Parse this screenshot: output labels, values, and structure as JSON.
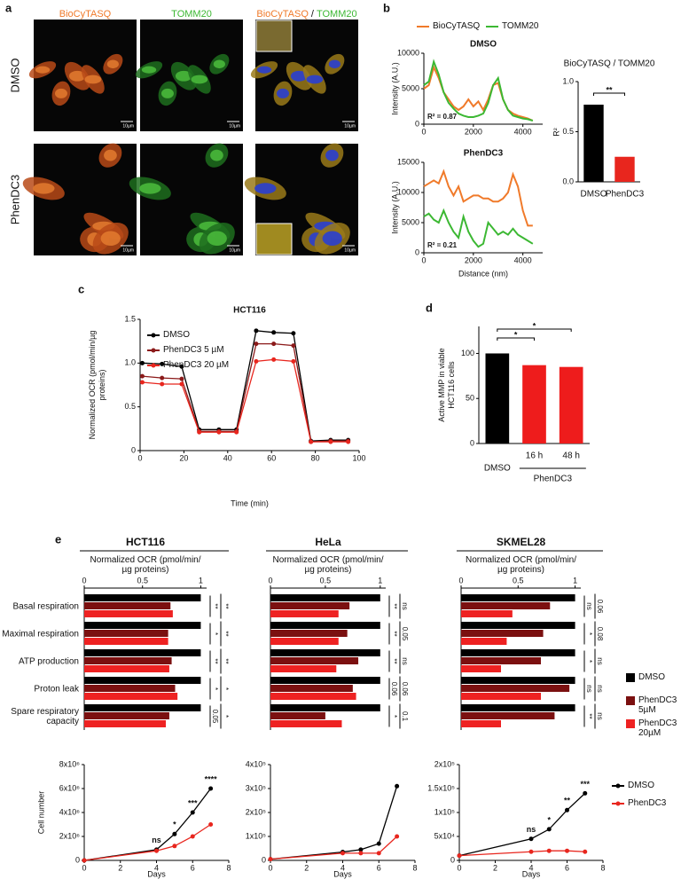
{
  "panel_labels": [
    "a",
    "b",
    "c",
    "d",
    "e"
  ],
  "panel_a": {
    "columns": [
      "BioCyTASQ",
      "TOMM20"
    ],
    "merge_separator": "/",
    "rows": [
      "DMSO",
      "PhenDC3"
    ],
    "scale_bar": "10µm",
    "column_colors": [
      "#f07a2a",
      "#3cb833"
    ]
  },
  "chart_data": [
    {
      "type": "line",
      "title": "DMSO",
      "ylabel": "Intensity (A.U.)",
      "annotation": "R² = 0.87",
      "x": [
        0,
        200,
        400,
        600,
        800,
        1000,
        1200,
        1400,
        1600,
        1800,
        2000,
        2200,
        2400,
        2600,
        2800,
        3000,
        3200,
        3400,
        3600,
        3800,
        4000,
        4200,
        4400
      ],
      "xlim": [
        0,
        4800
      ],
      "xticks": [
        0,
        2000,
        4000
      ],
      "ylim": [
        0,
        10000
      ],
      "yticks": [
        0,
        5000,
        10000
      ],
      "series": [
        {
          "name": "BioCyTASQ",
          "color": "#f07a2a",
          "values": [
            5000,
            5500,
            8000,
            6500,
            4500,
            3500,
            2500,
            2000,
            2500,
            3500,
            2500,
            3200,
            2000,
            3500,
            5500,
            5800,
            3500,
            2000,
            1500,
            1200,
            1000,
            800,
            500
          ]
        },
        {
          "name": "TOMM20",
          "color": "#3cb833",
          "values": [
            5500,
            6000,
            8800,
            7000,
            4500,
            3000,
            2200,
            1500,
            1200,
            1000,
            1000,
            1200,
            1500,
            3000,
            5500,
            6500,
            3500,
            2000,
            1200,
            1000,
            800,
            700,
            500
          ]
        }
      ]
    },
    {
      "type": "line",
      "title": "PhenDC3",
      "ylabel": "Intensity (A.U.)",
      "xlabel": "Distance (nm)",
      "annotation": "R² = 0.21",
      "x": [
        0,
        200,
        400,
        600,
        800,
        1000,
        1200,
        1400,
        1600,
        1800,
        2000,
        2200,
        2400,
        2600,
        2800,
        3000,
        3200,
        3400,
        3600,
        3800,
        4000,
        4200,
        4400
      ],
      "xlim": [
        0,
        4800
      ],
      "xticks": [
        0,
        2000,
        4000
      ],
      "ylim": [
        0,
        15000
      ],
      "yticks": [
        0,
        5000,
        10000,
        15000
      ],
      "series": [
        {
          "color": "#f07a2a",
          "values": [
            11000,
            11500,
            12000,
            11500,
            13500,
            11000,
            9500,
            11000,
            8500,
            9000,
            9500,
            9500,
            9000,
            9000,
            8500,
            8500,
            9000,
            10000,
            13000,
            11000,
            7000,
            4500,
            4500
          ]
        },
        {
          "color": "#3cb833",
          "values": [
            6000,
            6500,
            5500,
            5000,
            7000,
            5000,
            3500,
            2500,
            6000,
            3500,
            2000,
            1000,
            1500,
            5000,
            4000,
            3000,
            3500,
            3000,
            4000,
            3000,
            2500,
            2000,
            1500
          ]
        }
      ]
    },
    {
      "type": "bar",
      "title": "BioCyTASQ / TOMM20",
      "ylabel": "R²",
      "categories": [
        "DMSO",
        "PhenDC3"
      ],
      "values": [
        0.77,
        0.25
      ],
      "colors": [
        "#000000",
        "#e8261e"
      ],
      "ylim": [
        0,
        1
      ],
      "yticks": [
        {
          "value": 0,
          "label": "0.0"
        },
        0.5,
        {
          "value": 1,
          "label": "1.0"
        }
      ],
      "significance": [
        "**"
      ]
    },
    {
      "type": "line",
      "title": "HCT116",
      "xlabel": "Time (min)",
      "ylabel": "Normalized OCR (pmol/min/µg proteins)",
      "markers": true,
      "x": [
        1,
        10,
        19,
        27,
        36,
        44,
        53,
        61,
        70,
        78,
        87,
        95
      ],
      "xlim": [
        0,
        100
      ],
      "xticks": [
        0,
        20,
        40,
        60,
        80,
        100
      ],
      "ylim": [
        0,
        1.5
      ],
      "yticks": [
        0,
        0.5,
        {
          "value": 1,
          "label": "1.0"
        },
        1.5
      ],
      "series": [
        {
          "name": "DMSO",
          "color": "#000000",
          "values": [
            1.0,
            0.99,
            0.96,
            0.24,
            0.24,
            0.24,
            1.37,
            1.35,
            1.34,
            0.11,
            0.12,
            0.12
          ]
        },
        {
          "name": "PhenDC3 5 µM",
          "color": "#8b1a1a",
          "values": [
            0.85,
            0.83,
            0.82,
            0.22,
            0.22,
            0.22,
            1.22,
            1.22,
            1.2,
            0.1,
            0.11,
            0.11
          ]
        },
        {
          "name": "PhenDC3 20 µM",
          "color": "#e8261e",
          "values": [
            0.78,
            0.76,
            0.76,
            0.21,
            0.21,
            0.21,
            1.02,
            1.04,
            1.02,
            0.1,
            0.1,
            0.1
          ]
        }
      ]
    },
    {
      "type": "bar",
      "ylabel": "Active MMP in viable HCT116 cells",
      "categories": [
        "DMSO",
        "16 h",
        "48 h"
      ],
      "group_label": "PhenDC3",
      "values": [
        100,
        87,
        85
      ],
      "colors": [
        "#000000",
        "#ee1c1c",
        "#ee1c1c"
      ],
      "ylim": [
        0,
        130
      ],
      "yticks": [
        0,
        50,
        100
      ],
      "significance": [
        "*",
        "*"
      ]
    },
    {
      "type": "hbar",
      "title": "HCT116",
      "xlabel": "Normalized OCR (pmol/min/µg proteins)",
      "categories": [
        "Basal respiration",
        "Maximal respiration",
        "ATP production",
        "Proton leak",
        "Spare respiratory capacity"
      ],
      "xlim": [
        0,
        1.05
      ],
      "xticks": [
        0,
        0.5,
        1
      ],
      "series": [
        {
          "color": "#000000",
          "values": [
            1,
            1,
            1,
            1,
            1
          ]
        },
        {
          "color": "#7b1010",
          "values": [
            0.74,
            0.72,
            0.75,
            0.78,
            0.73
          ]
        },
        {
          "color": "#ee2222",
          "values": [
            0.76,
            0.72,
            0.73,
            0.8,
            0.7
          ]
        }
      ],
      "significance": [
        [
          "**",
          "**"
        ],
        [
          "*",
          "**"
        ],
        [
          "**",
          "**"
        ],
        [
          "*",
          "*"
        ],
        [
          "0.05",
          "*"
        ]
      ]
    },
    {
      "type": "hbar",
      "title": "HeLa",
      "xlabel": "Normalized OCR (pmol/min/µg proteins)",
      "xlim": [
        0,
        1.05
      ],
      "xticks": [
        0,
        0.5,
        1
      ],
      "series": [
        {
          "color": "#000000",
          "values": [
            1,
            1,
            1,
            1,
            1
          ]
        },
        {
          "color": "#7b1010",
          "values": [
            0.72,
            0.7,
            0.8,
            0.75,
            0.5
          ]
        },
        {
          "color": "#ee2222",
          "values": [
            0.62,
            0.62,
            0.6,
            0.78,
            0.65
          ]
        }
      ],
      "significance": [
        [
          "**",
          "ns"
        ],
        [
          "**",
          "0.05"
        ],
        [
          "**",
          "ns"
        ],
        [
          "0.06",
          "0.06"
        ],
        [
          "*",
          "0.1"
        ]
      ]
    },
    {
      "type": "hbar",
      "title": "SKMEL28",
      "xlabel": "Normalized OCR (pmol/min/µg proteins)",
      "xlim": [
        0,
        1.05
      ],
      "xticks": [
        0,
        0.5,
        1
      ],
      "series": [
        {
          "name": "DMSO",
          "color": "#000000",
          "values": [
            1,
            1,
            1,
            1,
            1
          ]
        },
        {
          "name": "PhenDC3 5µM",
          "color": "#7b1010",
          "values": [
            0.78,
            0.72,
            0.7,
            0.95,
            0.82
          ]
        },
        {
          "name": "PhenDC3 20µM",
          "color": "#ee2222",
          "values": [
            0.45,
            0.4,
            0.35,
            0.7,
            0.35
          ]
        }
      ],
      "significance": [
        [
          "ns",
          "0.06"
        ],
        [
          "*",
          "0.08"
        ],
        [
          "*",
          "ns"
        ],
        [
          "ns",
          "ns"
        ],
        [
          "**",
          "ns"
        ]
      ]
    },
    {
      "type": "line",
      "xlabel": "Days",
      "ylabel": "Cell number",
      "markers": true,
      "x": [
        0,
        4,
        5,
        6,
        7
      ],
      "xlim": [
        0,
        8
      ],
      "xticks": [
        0,
        2,
        4,
        6,
        8
      ],
      "ylim": [
        0,
        8000000
      ],
      "yticks": [
        0,
        {
          "value": 2000000,
          "label": "2x10⁶"
        },
        {
          "value": 4000000,
          "label": "4x10⁶"
        },
        {
          "value": 6000000,
          "label": "6x10⁶"
        },
        {
          "value": 8000000,
          "label": "8x10⁶"
        }
      ],
      "series": [
        {
          "color": "#000000",
          "values": [
            0,
            900000,
            2200000,
            4000000,
            6000000
          ]
        },
        {
          "color": "#e8261e",
          "values": [
            0,
            800000,
            1200000,
            2000000,
            3000000
          ]
        }
      ],
      "annotations": [
        "ns",
        "*",
        "***",
        "****"
      ]
    },
    {
      "type": "line",
      "xlabel": "Days",
      "markers": true,
      "x": [
        0,
        4,
        5,
        6,
        7
      ],
      "xlim": [
        0,
        8
      ],
      "xticks": [
        0,
        2,
        4,
        6,
        8
      ],
      "ylim": [
        0,
        400000
      ],
      "yticks": [
        0,
        {
          "value": 100000,
          "label": "1x10⁵"
        },
        {
          "value": 200000,
          "label": "2x10⁵"
        },
        {
          "value": 300000,
          "label": "3x10⁵"
        },
        {
          "value": 400000,
          "label": "4x10⁵"
        }
      ],
      "series": [
        {
          "color": "#000000",
          "values": [
            5000,
            35000,
            45000,
            70000,
            310000
          ]
        },
        {
          "color": "#e8261e",
          "values": [
            5000,
            30000,
            30000,
            30000,
            100000
          ]
        }
      ]
    },
    {
      "type": "line",
      "xlabel": "Days",
      "markers": true,
      "x": [
        0,
        4,
        5,
        6,
        7
      ],
      "xlim": [
        0,
        8
      ],
      "xticks": [
        0,
        2,
        4,
        6,
        8
      ],
      "ylim": [
        0,
        200000
      ],
      "yticks": [
        0,
        {
          "value": 50000,
          "label": "5x10⁴"
        },
        {
          "value": 100000,
          "label": "1x10⁵"
        },
        {
          "value": 150000,
          "label": "1.5x10⁵"
        },
        {
          "value": 200000,
          "label": "2x10⁵"
        }
      ],
      "series": [
        {
          "name": "DMSO",
          "color": "#000000",
          "values": [
            10000,
            45000,
            65000,
            105000,
            140000
          ]
        },
        {
          "name": "PhenDC3",
          "color": "#e8261e",
          "values": [
            10000,
            18000,
            20000,
            20000,
            18000
          ]
        }
      ],
      "annotations": [
        "ns",
        "*",
        "**",
        "***"
      ]
    }
  ]
}
